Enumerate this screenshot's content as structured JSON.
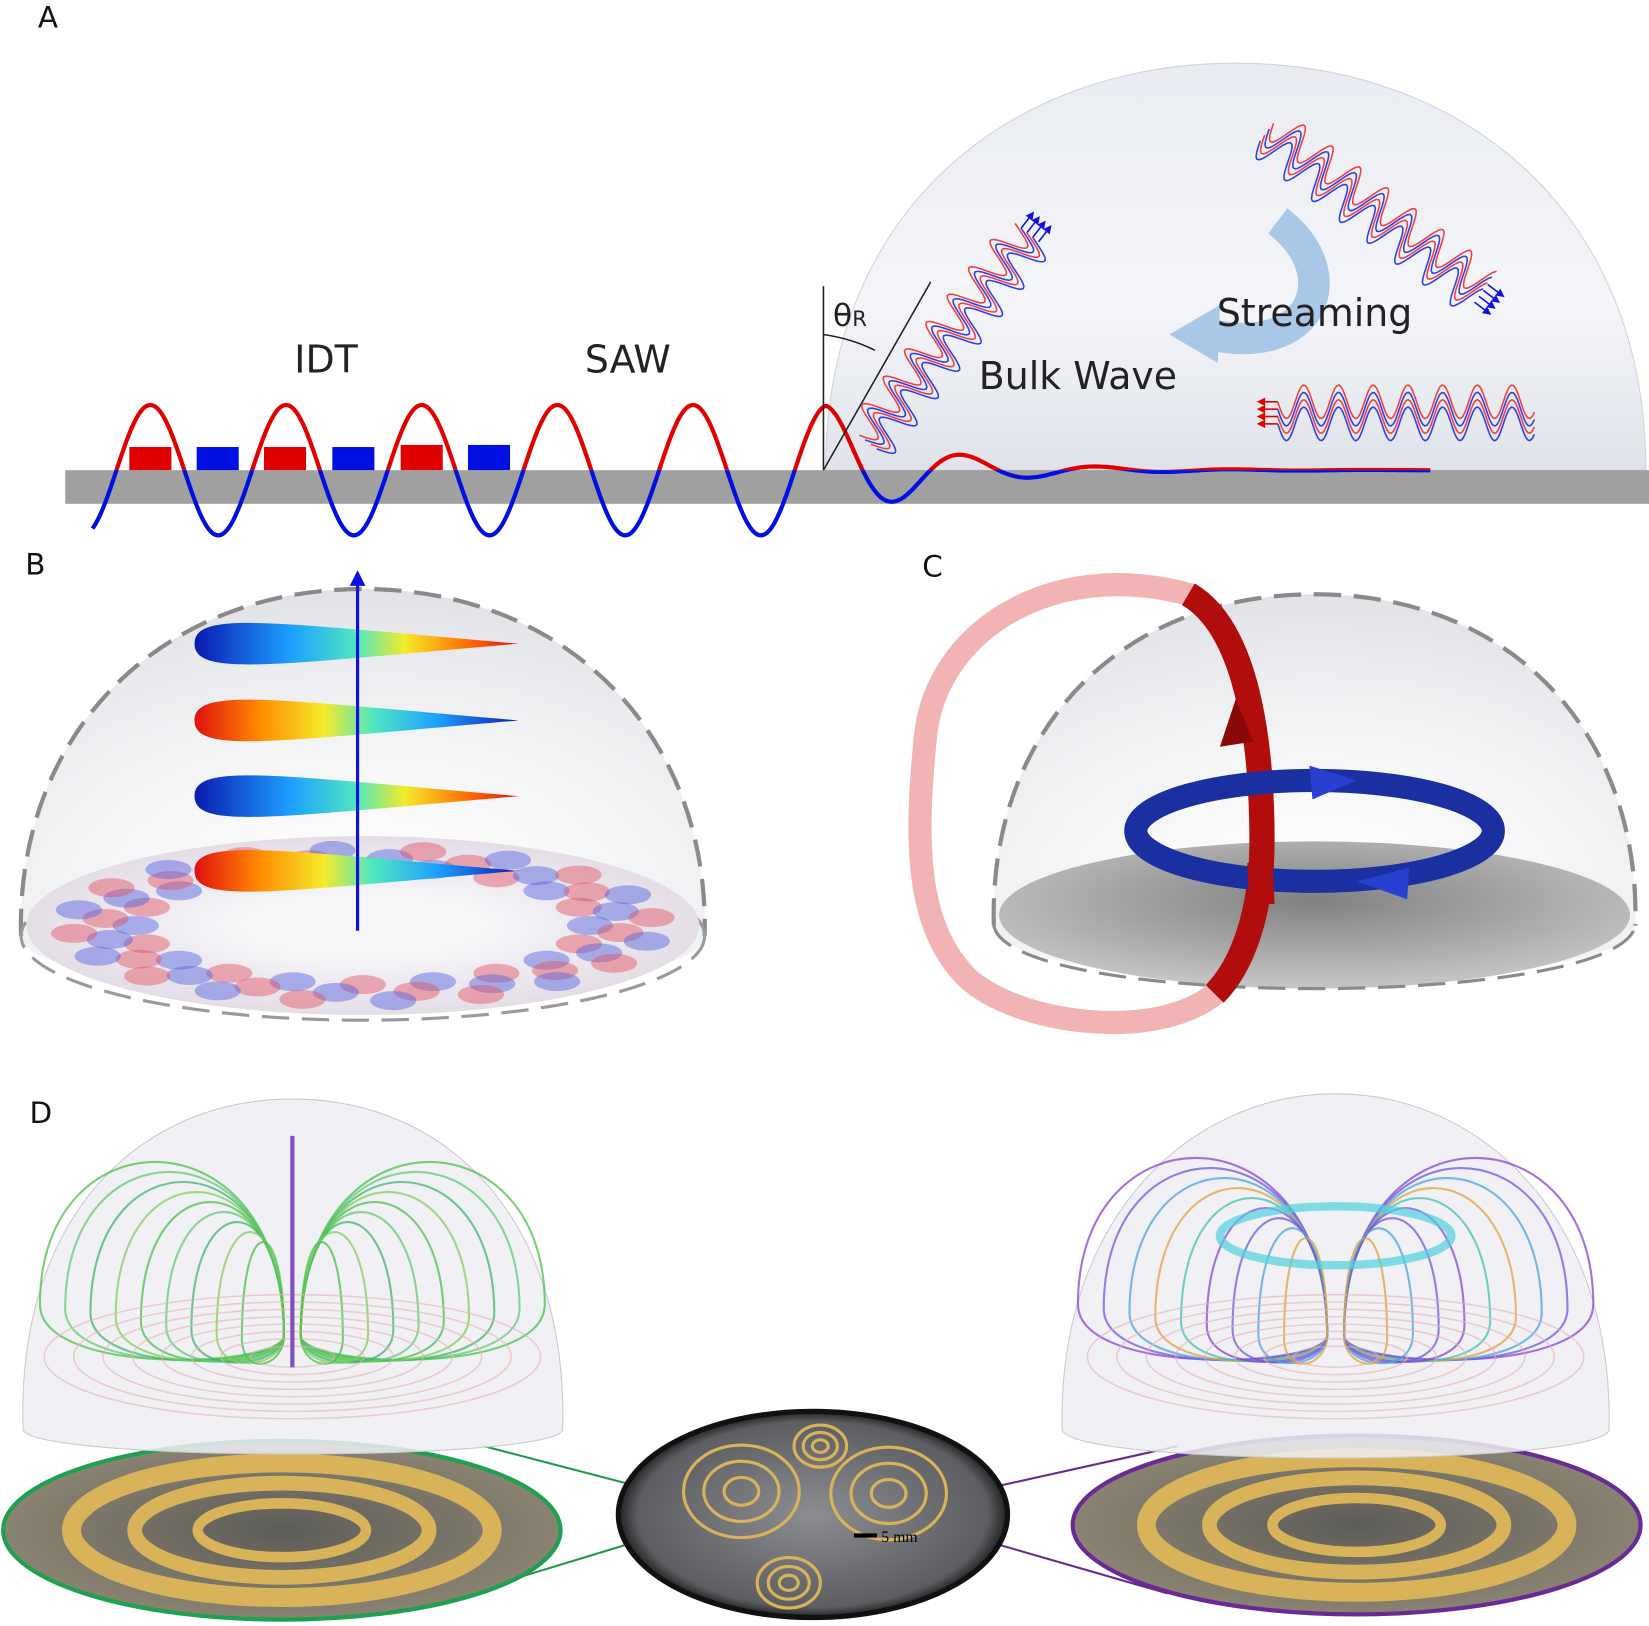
{
  "panels": {
    "a": {
      "label": "A",
      "idt": "IDT",
      "saw": "SAW",
      "theta": "θ",
      "theta_sub": "R",
      "bulk_wave": "Bulk Wave",
      "streaming": "Streaming"
    },
    "b": {
      "label": "B"
    },
    "c": {
      "label": "C"
    },
    "d": {
      "label": "D",
      "scale_bar": "5 mm"
    }
  }
}
